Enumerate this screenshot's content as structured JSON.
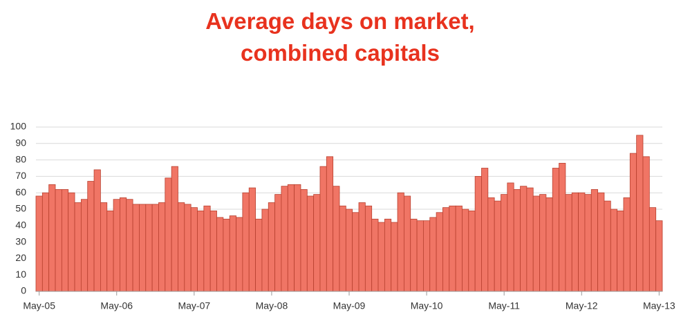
{
  "chart_data": {
    "type": "bar",
    "title": "Average days on market, combined capitals",
    "categories": [
      "May-05",
      null,
      null,
      null,
      null,
      null,
      null,
      null,
      null,
      null,
      null,
      null,
      "May-06",
      null,
      null,
      null,
      null,
      null,
      null,
      null,
      null,
      null,
      null,
      null,
      "May-07",
      null,
      null,
      null,
      null,
      null,
      null,
      null,
      null,
      null,
      null,
      null,
      "May-08",
      null,
      null,
      null,
      null,
      null,
      null,
      null,
      null,
      null,
      null,
      null,
      "May-09",
      null,
      null,
      null,
      null,
      null,
      null,
      null,
      null,
      null,
      null,
      null,
      "May-10",
      null,
      null,
      null,
      null,
      null,
      null,
      null,
      null,
      null,
      null,
      null,
      "May-11",
      null,
      null,
      null,
      null,
      null,
      null,
      null,
      null,
      null,
      null,
      null,
      "May-12",
      null,
      null,
      null,
      null,
      null,
      null,
      null,
      null,
      null,
      null,
      null,
      "May-13"
    ],
    "values": [
      58,
      60,
      65,
      62,
      62,
      60,
      54,
      56,
      67,
      74,
      54,
      49,
      56,
      57,
      56,
      53,
      53,
      53,
      53,
      54,
      69,
      76,
      54,
      53,
      51,
      49,
      52,
      49,
      45,
      44,
      46,
      45,
      60,
      63,
      44,
      50,
      54,
      59,
      64,
      65,
      65,
      62,
      58,
      59,
      76,
      82,
      64,
      52,
      50,
      48,
      54,
      52,
      44,
      42,
      44,
      42,
      60,
      58,
      44,
      43,
      43,
      45,
      48,
      51,
      52,
      52,
      50,
      49,
      70,
      75,
      57,
      55,
      59,
      66,
      62,
      64,
      63,
      58,
      59,
      57,
      75,
      78,
      59,
      60,
      60,
      59,
      62,
      60,
      55,
      50,
      49,
      57,
      84,
      95,
      82,
      51,
      43
    ],
    "color": "#f07565",
    "ylim": [
      0,
      100
    ],
    "yticks": [
      0,
      10,
      20,
      30,
      40,
      50,
      60,
      70,
      80,
      90,
      100
    ],
    "grid": true
  }
}
